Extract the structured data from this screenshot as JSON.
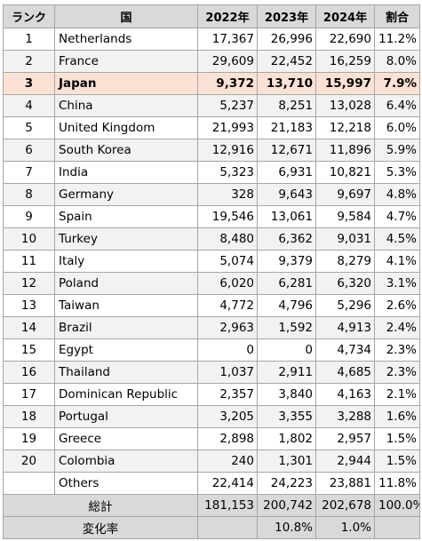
{
  "header": {
    "rank": "ランク",
    "country": "国",
    "y2022": "2022年",
    "y2023": "2023年",
    "y2024": "2024年",
    "share": "割合"
  },
  "rows": [
    {
      "rank": "1",
      "country": "Netherlands",
      "y2022": "17,367",
      "y2023": "26,996",
      "y2024": "22,690",
      "share": "11.2%"
    },
    {
      "rank": "2",
      "country": "France",
      "y2022": "29,609",
      "y2023": "22,452",
      "y2024": "16,259",
      "share": "8.0%"
    },
    {
      "rank": "3",
      "country": "Japan",
      "y2022": "9,372",
      "y2023": "13,710",
      "y2024": "15,997",
      "share": "7.9%"
    },
    {
      "rank": "4",
      "country": "China",
      "y2022": "5,237",
      "y2023": "8,251",
      "y2024": "13,028",
      "share": "6.4%"
    },
    {
      "rank": "5",
      "country": "United Kingdom",
      "y2022": "21,993",
      "y2023": "21,183",
      "y2024": "12,218",
      "share": "6.0%"
    },
    {
      "rank": "6",
      "country": "South Korea",
      "y2022": "12,916",
      "y2023": "12,671",
      "y2024": "11,896",
      "share": "5.9%"
    },
    {
      "rank": "7",
      "country": "India",
      "y2022": "5,323",
      "y2023": "6,931",
      "y2024": "10,821",
      "share": "5.3%"
    },
    {
      "rank": "8",
      "country": "Germany",
      "y2022": "328",
      "y2023": "9,643",
      "y2024": "9,697",
      "share": "4.8%"
    },
    {
      "rank": "9",
      "country": "Spain",
      "y2022": "19,546",
      "y2023": "13,061",
      "y2024": "9,584",
      "share": "4.7%"
    },
    {
      "rank": "10",
      "country": "Turkey",
      "y2022": "8,480",
      "y2023": "6,362",
      "y2024": "9,031",
      "share": "4.5%"
    },
    {
      "rank": "11",
      "country": "Italy",
      "y2022": "5,074",
      "y2023": "9,379",
      "y2024": "8,279",
      "share": "4.1%"
    },
    {
      "rank": "12",
      "country": "Poland",
      "y2022": "6,020",
      "y2023": "6,281",
      "y2024": "6,320",
      "share": "3.1%"
    },
    {
      "rank": "13",
      "country": "Taiwan",
      "y2022": "4,772",
      "y2023": "4,796",
      "y2024": "5,296",
      "share": "2.6%"
    },
    {
      "rank": "14",
      "country": "Brazil",
      "y2022": "2,963",
      "y2023": "1,592",
      "y2024": "4,913",
      "share": "2.4%"
    },
    {
      "rank": "15",
      "country": "Egypt",
      "y2022": "0",
      "y2023": "0",
      "y2024": "4,734",
      "share": "2.3%"
    },
    {
      "rank": "16",
      "country": "Thailand",
      "y2022": "1,037",
      "y2023": "2,911",
      "y2024": "4,685",
      "share": "2.3%"
    },
    {
      "rank": "17",
      "country": "Dominican Republic",
      "y2022": "2,357",
      "y2023": "3,840",
      "y2024": "4,163",
      "share": "2.1%"
    },
    {
      "rank": "18",
      "country": "Portugal",
      "y2022": "3,205",
      "y2023": "3,355",
      "y2024": "3,288",
      "share": "1.6%"
    },
    {
      "rank": "19",
      "country": "Greece",
      "y2022": "2,898",
      "y2023": "1,802",
      "y2024": "2,957",
      "share": "1.5%"
    },
    {
      "rank": "20",
      "country": "Colombia",
      "y2022": "240",
      "y2023": "1,301",
      "y2024": "2,944",
      "share": "1.5%"
    },
    {
      "rank": "",
      "country": "Others",
      "y2022": "22,414",
      "y2023": "24,223",
      "y2024": "23,881",
      "share": "11.8%"
    }
  ],
  "highlight_row_index": 2,
  "total": {
    "label": "総計",
    "y2022": "181,153",
    "y2023": "200,742",
    "y2024": "202,678",
    "share": "100.0%"
  },
  "change": {
    "label": "変化率",
    "y2022": "",
    "y2023": "10.8%",
    "y2024": "1.0%",
    "share": ""
  },
  "colors": {
    "header_bg": "#d9d9d9",
    "stripe_bg": "#f2f2f2",
    "highlight_bg": "#fbe2d5",
    "border": "#a6a6a6"
  }
}
